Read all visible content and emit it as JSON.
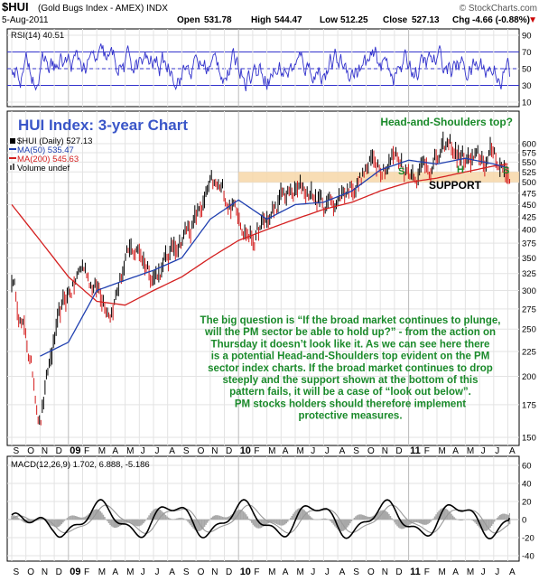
{
  "header": {
    "symbol": "$HUI",
    "name": "(Gold Bugs Index - AMEX) INDX",
    "watermark": "© StockCharts.com",
    "date": "5-Aug-2011",
    "open_label": "Open",
    "open": "531.78",
    "high_label": "High",
    "high": "544.47",
    "low_label": "Low",
    "low": "512.25",
    "close_label": "Close",
    "close": "527.13",
    "chg_label": "Chg",
    "chg": "-4.66 (-0.88%)",
    "down_arrow": "▼"
  },
  "rsi": {
    "label": "RSI(14) 40.51",
    "ticks": [
      "90",
      "70",
      "50",
      "30",
      "10"
    ],
    "levels": [
      90,
      70,
      50,
      30,
      10
    ],
    "color": "#3333cc"
  },
  "price": {
    "overlay_title": "HUI Index: 3-year Chart",
    "legend": [
      {
        "text": "$HUI (Daily) 527.13",
        "color": "#000000"
      },
      {
        "text": "MA(50) 535.47",
        "color": "#1f3fb0"
      },
      {
        "text": "MA(200) 545.63",
        "color": "#d42020"
      },
      {
        "text": "Volume undef",
        "color": "#000000"
      }
    ],
    "ticks": [
      "600",
      "575",
      "550",
      "525",
      "500",
      "475",
      "450",
      "425",
      "400",
      "375",
      "350",
      "325",
      "300",
      "275",
      "250",
      "225",
      "200",
      "175",
      "150"
    ],
    "tick_values": [
      600,
      575,
      550,
      525,
      500,
      475,
      450,
      425,
      400,
      375,
      350,
      325,
      300,
      275,
      250,
      225,
      200,
      175,
      150
    ],
    "support_label": "SUPPORT",
    "support_range": [
      500,
      525
    ],
    "hs_title": "Head-and-Shoulders top?",
    "hs_letters": [
      "S",
      "H",
      "S"
    ],
    "comment_lines": [
      "The big question is “If the broad market continues to plunge,",
      "will the PM sector be able to hold up?” - from the action on",
      "Thursday it doesn’t look like it. As we can see here there",
      "is a potential Head-and-Shoulders top evident on the PM",
      "sector index charts. If the broad market continues to drop",
      "steeply and the support shown at the bottom of this",
      "pattern fails, it will be a case of “look out below”.",
      "PM stocks holders should therefore implement",
      "protective measures."
    ]
  },
  "macd": {
    "label": "MACD(12,26,9) 1.702, 6.888, -5.186",
    "ticks": [
      "60",
      "40",
      "20",
      "0",
      "-20",
      "-40"
    ],
    "tick_values": [
      60,
      40,
      20,
      0,
      -20,
      -40
    ]
  },
  "x_axis": {
    "months": [
      "S",
      "O",
      "N",
      "D",
      "09",
      "F",
      "M",
      "A",
      "M",
      "J",
      "J",
      "A",
      "S",
      "O",
      "N",
      "D",
      "10",
      "F",
      "M",
      "A",
      "M",
      "J",
      "J",
      "A",
      "S",
      "O",
      "N",
      "D",
      "11",
      "F",
      "M",
      "A",
      "M",
      "J",
      "J",
      "A"
    ]
  },
  "chart_data": {
    "type": "line",
    "title": "$HUI (Gold Bugs Index - AMEX) INDX",
    "x_range": [
      "2008-09",
      "2011-08-05"
    ],
    "y_scale": "log",
    "ylim": [
      140,
      620
    ],
    "series": [
      {
        "name": "$HUI (Daily) 527.13",
        "x": [
          "2008-09",
          "2008-10",
          "2008-11",
          "2008-12",
          "2009-01",
          "2009-02",
          "2009-03",
          "2009-04",
          "2009-05",
          "2009-06",
          "2009-07",
          "2009-08",
          "2009-09",
          "2009-10",
          "2009-11",
          "2009-12",
          "2010-01",
          "2010-02",
          "2010-03",
          "2010-04",
          "2010-05",
          "2010-06",
          "2010-07",
          "2010-08",
          "2010-09",
          "2010-10",
          "2010-11",
          "2010-12",
          "2011-01",
          "2011-02",
          "2011-03",
          "2011-04",
          "2011-05",
          "2011-06",
          "2011-07",
          "2011-08"
        ],
        "values": [
          320,
          240,
          165,
          235,
          290,
          335,
          305,
          285,
          345,
          360,
          330,
          345,
          395,
          420,
          475,
          460,
          445,
          390,
          410,
          455,
          470,
          480,
          445,
          465,
          500,
          530,
          560,
          575,
          535,
          545,
          560,
          580,
          555,
          535,
          570,
          527
        ]
      },
      {
        "name": "MA(50) 535.47",
        "x": [
          "2008-11",
          "2009-01",
          "2009-03",
          "2009-05",
          "2009-07",
          "2009-09",
          "2009-11",
          "2010-01",
          "2010-03",
          "2010-05",
          "2010-07",
          "2010-09",
          "2010-11",
          "2011-01",
          "2011-03",
          "2011-05",
          "2011-07",
          "2011-08"
        ],
        "values": [
          220,
          235,
          300,
          315,
          330,
          350,
          420,
          460,
          420,
          450,
          455,
          480,
          530,
          555,
          545,
          560,
          545,
          535
        ]
      },
      {
        "name": "MA(200) 545.63",
        "x": [
          "2008-09",
          "2008-11",
          "2009-01",
          "2009-03",
          "2009-05",
          "2009-07",
          "2009-09",
          "2009-11",
          "2010-01",
          "2010-03",
          "2010-05",
          "2010-07",
          "2010-09",
          "2010-11",
          "2011-01",
          "2011-03",
          "2011-05",
          "2011-07",
          "2011-08"
        ],
        "values": [
          450,
          380,
          320,
          285,
          280,
          300,
          320,
          350,
          380,
          400,
          420,
          440,
          455,
          480,
          500,
          510,
          525,
          540,
          545
        ]
      }
    ],
    "rsi_last": 40.51,
    "macd_last": {
      "macd": 1.702,
      "signal": 6.888,
      "histogram": -5.186
    }
  }
}
